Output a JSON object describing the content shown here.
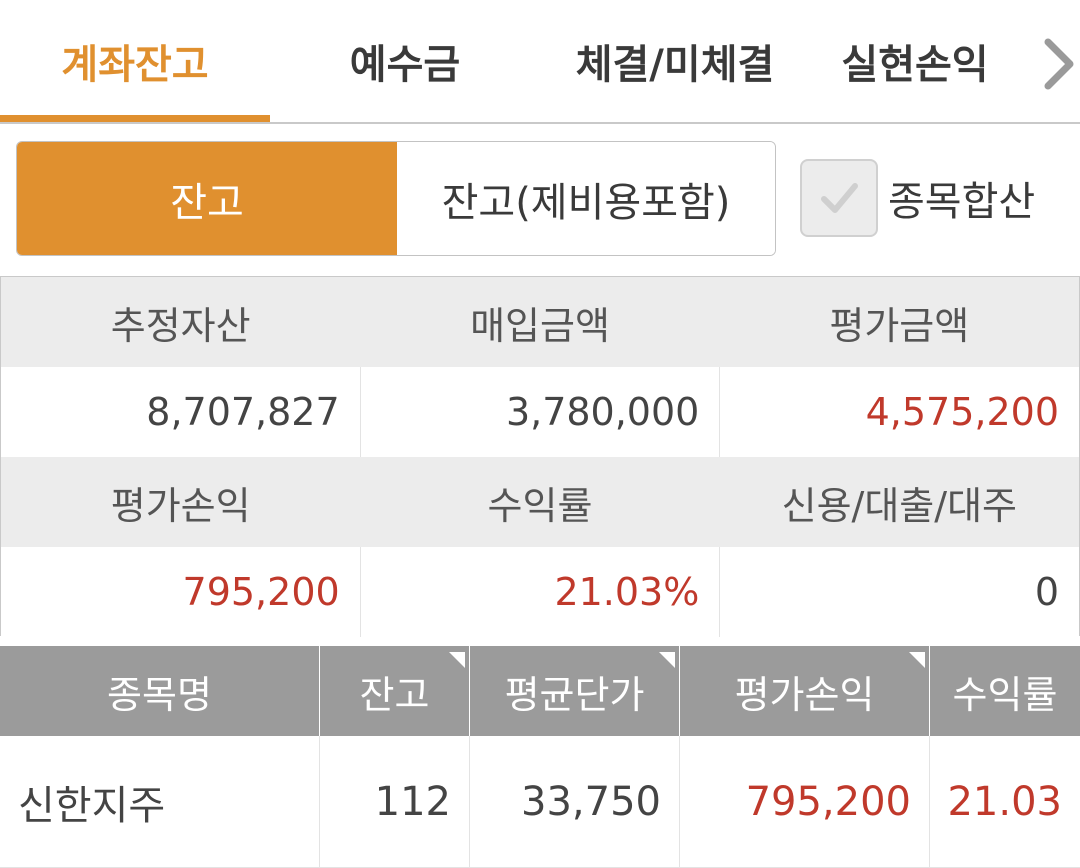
{
  "tabs": [
    {
      "label": "계좌잔고",
      "active": true
    },
    {
      "label": "예수금",
      "active": false
    },
    {
      "label": "체결/미체결",
      "active": false
    },
    {
      "label": "실현손익",
      "active": false
    }
  ],
  "tab_next_icon": "chevron-right-icon",
  "segment": {
    "option_1": "잔고",
    "option_2": "잔고(제비용포함)",
    "selected": "잔고"
  },
  "checkbox": {
    "label": "종목합산",
    "checked": true
  },
  "summary": {
    "row1_headers": [
      "추정자산",
      "매입금액",
      "평가금액"
    ],
    "row1_values": [
      "8,707,827",
      "3,780,000",
      "4,575,200"
    ],
    "row2_headers": [
      "평가손익",
      "수익률",
      "신용/대출/대주"
    ],
    "row2_values": [
      "795,200",
      "21.03%",
      "0"
    ]
  },
  "holdings": {
    "columns": [
      "종목명",
      "잔고",
      "평균단가",
      "평가손익",
      "수익률"
    ],
    "rows": [
      {
        "name": "신한지주",
        "qty": "112",
        "avg_price": "33,750",
        "pnl": "795,200",
        "rate": "21.03"
      }
    ]
  },
  "colors": {
    "accent": "#e0902f",
    "profit_red": "#c0392b",
    "header_gray": "#9b9b9b"
  }
}
